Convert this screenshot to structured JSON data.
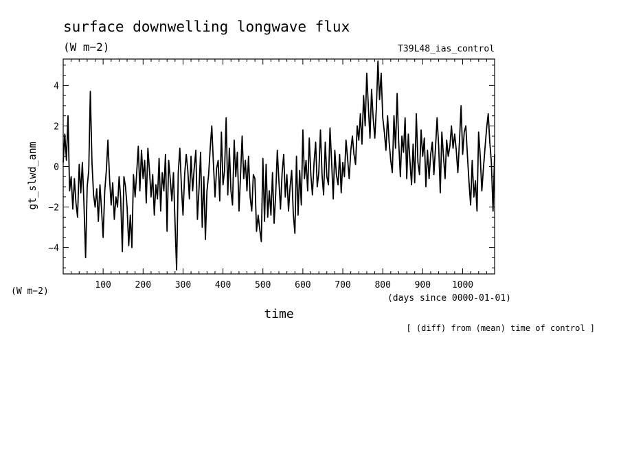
{
  "title": "surface downwelling longwave flux",
  "units": "(W m−2)",
  "experiment": "T39L48_ias_control",
  "footnote": "[ (diff) from (mean) time of control ]",
  "chart_data": {
    "type": "line",
    "title": "surface downwelling longwave flux",
    "xlabel": "time",
    "xunits": "(days since 0000-01-01)",
    "ylabel": "gt_slwd_anm",
    "yunits": "(W m−2)",
    "xlim": [
      0,
      1080
    ],
    "ylim": [
      -5.3,
      5.3
    ],
    "xticks": [
      100,
      200,
      300,
      400,
      500,
      600,
      700,
      800,
      900,
      1000
    ],
    "xtick_labels": [
      "100",
      "200",
      "300",
      "400",
      "500",
      "600",
      "700",
      "800",
      "900",
      "1000"
    ],
    "yticks": [
      -4,
      -2,
      0,
      2,
      4
    ],
    "ytick_labels": [
      "−4",
      "−2",
      "0",
      "2",
      "4"
    ],
    "grid": false,
    "line_color": "#000000",
    "x": [
      0,
      4,
      8,
      12,
      16,
      20,
      24,
      28,
      32,
      36,
      40,
      44,
      48,
      52,
      56,
      60,
      64,
      68,
      72,
      76,
      80,
      84,
      88,
      92,
      96,
      100,
      104,
      108,
      112,
      116,
      120,
      124,
      128,
      132,
      136,
      140,
      144,
      148,
      152,
      156,
      160,
      164,
      168,
      172,
      176,
      180,
      184,
      188,
      192,
      196,
      200,
      204,
      208,
      212,
      216,
      220,
      224,
      228,
      232,
      236,
      240,
      244,
      248,
      252,
      256,
      260,
      264,
      268,
      272,
      276,
      280,
      284,
      288,
      292,
      296,
      300,
      304,
      308,
      312,
      316,
      320,
      324,
      328,
      332,
      336,
      340,
      344,
      348,
      352,
      356,
      360,
      364,
      368,
      372,
      376,
      380,
      384,
      388,
      392,
      396,
      400,
      404,
      408,
      412,
      416,
      420,
      424,
      428,
      432,
      436,
      440,
      444,
      448,
      452,
      456,
      460,
      464,
      468,
      472,
      476,
      480,
      484,
      488,
      492,
      496,
      500,
      504,
      508,
      512,
      516,
      520,
      524,
      528,
      532,
      536,
      540,
      544,
      548,
      552,
      556,
      560,
      564,
      568,
      572,
      576,
      580,
      584,
      588,
      592,
      596,
      600,
      604,
      608,
      612,
      616,
      620,
      624,
      628,
      632,
      636,
      640,
      644,
      648,
      652,
      656,
      660,
      664,
      668,
      672,
      676,
      680,
      684,
      688,
      692,
      696,
      700,
      704,
      708,
      712,
      716,
      720,
      724,
      728,
      732,
      736,
      740,
      744,
      748,
      752,
      756,
      760,
      764,
      768,
      772,
      776,
      780,
      784,
      788,
      792,
      796,
      800,
      804,
      808,
      812,
      816,
      820,
      824,
      828,
      832,
      836,
      840,
      844,
      848,
      852,
      856,
      860,
      864,
      868,
      872,
      876,
      880,
      884,
      888,
      892,
      896,
      900,
      904,
      908,
      912,
      916,
      920,
      924,
      928,
      932,
      936,
      940,
      944,
      948,
      952,
      956,
      960,
      964,
      968,
      972,
      976,
      980,
      984,
      988,
      992,
      996,
      1000,
      1004,
      1008,
      1012,
      1016,
      1020,
      1024,
      1028,
      1032,
      1036,
      1040,
      1044,
      1048,
      1052,
      1056,
      1060,
      1064,
      1068,
      1072,
      1076,
      1080
    ],
    "y": [
      0.2,
      1.6,
      0.3,
      2.5,
      -1.2,
      -0.5,
      -2.1,
      -0.6,
      -1.8,
      -2.5,
      0.1,
      -1.3,
      0.2,
      -1.8,
      -4.5,
      -1.0,
      -0.2,
      3.7,
      0.2,
      -1.4,
      -2.0,
      -1.1,
      -2.7,
      -0.9,
      -2.1,
      -3.5,
      -1.2,
      -0.2,
      1.3,
      -0.6,
      -1.9,
      -0.8,
      -2.6,
      -1.5,
      -2.0,
      -0.5,
      -1.6,
      -4.2,
      -0.5,
      -1.0,
      -2.0,
      -3.9,
      -2.4,
      -4.0,
      -0.4,
      -1.5,
      -0.3,
      1.0,
      -1.2,
      0.8,
      -0.6,
      0.3,
      -1.8,
      0.9,
      -0.2,
      -1.5,
      -0.4,
      -2.4,
      -0.9,
      -1.6,
      0.4,
      -2.2,
      -0.3,
      -1.2,
      0.6,
      -3.2,
      0.3,
      -0.6,
      -1.7,
      -0.3,
      -2.8,
      -5.1,
      -0.3,
      0.9,
      -1.0,
      -2.4,
      -0.4,
      0.6,
      -0.2,
      -1.6,
      0.5,
      -1.2,
      -0.1,
      0.8,
      -2.6,
      -1.1,
      0.7,
      -3.0,
      -0.5,
      -3.6,
      -1.2,
      -0.4,
      0.9,
      2.0,
      0.2,
      -1.5,
      -0.1,
      0.3,
      -1.7,
      1.7,
      -0.9,
      -0.2,
      2.4,
      -1.4,
      0.9,
      -1.2,
      -1.9,
      1.3,
      -0.5,
      0.7,
      -2.2,
      -0.4,
      1.5,
      -0.6,
      0.3,
      -1.2,
      0.5,
      -1.5,
      -2.2,
      -0.4,
      -0.6,
      -3.2,
      -2.4,
      -3.1,
      -3.7,
      0.4,
      -2.7,
      0.1,
      -2.5,
      -1.2,
      -2.4,
      -0.3,
      -2.8,
      -1.4,
      0.8,
      -0.7,
      -2.1,
      -0.3,
      0.6,
      -1.5,
      -0.4,
      -2.2,
      -1.0,
      -0.2,
      -2.3,
      -3.3,
      0.5,
      -2.4,
      -0.2,
      -1.9,
      1.8,
      -0.6,
      0.3,
      -1.2,
      1.4,
      -0.4,
      -1.4,
      0.2,
      1.2,
      -1.0,
      -0.3,
      1.8,
      -0.4,
      -1.4,
      1.2,
      -0.5,
      -0.9,
      1.9,
      0.2,
      -1.6,
      0.8,
      -0.4,
      -0.9,
      0.6,
      -1.3,
      0.2,
      -0.5,
      1.3,
      0.4,
      -0.6,
      0.8,
      1.5,
      0.6,
      0.1,
      2.0,
      1.3,
      2.6,
      1.1,
      3.5,
      2.0,
      4.6,
      2.9,
      1.4,
      3.8,
      2.4,
      1.4,
      2.9,
      5.2,
      3.3,
      4.6,
      2.4,
      1.7,
      0.8,
      2.5,
      1.2,
      0.3,
      -0.3,
      2.5,
      0.9,
      3.6,
      1.2,
      -0.5,
      1.5,
      0.7,
      2.4,
      -0.6,
      1.6,
      0.3,
      -0.9,
      1.1,
      -0.8,
      2.6,
      0.2,
      -0.4,
      1.8,
      0.5,
      1.4,
      -1.0,
      0.8,
      -0.6,
      0.6,
      1.2,
      -0.4,
      0.9,
      2.4,
      1.0,
      -1.3,
      1.7,
      0.5,
      -0.6,
      1.3,
      0.5,
      1.0,
      2.0,
      0.9,
      1.6,
      0.8,
      -0.3,
      1.2,
      3.0,
      0.6,
      1.7,
      2.0,
      0.5,
      -0.8,
      -1.9,
      0.3,
      -1.5,
      -0.7,
      -2.2,
      1.7,
      0.5,
      -1.2,
      -0.1,
      0.9,
      1.9,
      2.6,
      1.2,
      0.2,
      -2.2,
      0.6
    ]
  }
}
